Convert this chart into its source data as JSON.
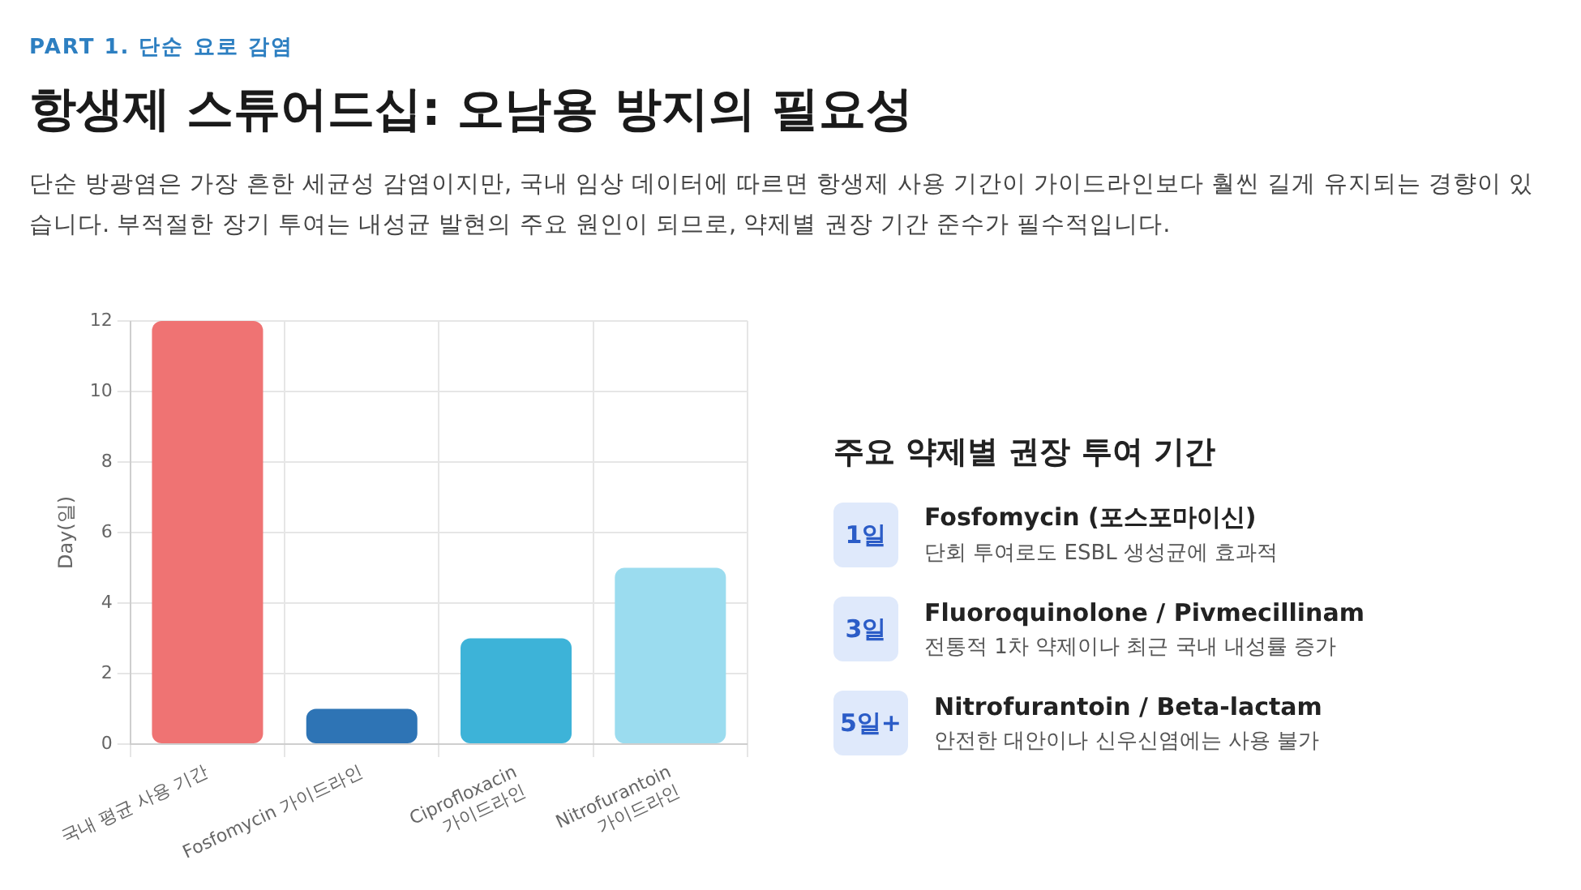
{
  "chart_data": [
    {
      "type": "bar",
      "title": "항생제 스튜어드십: 오남용 방지의 필요성",
      "subtitle": "단순 방광염은 가장 흔한 세균성 감염이지만, 국내 임상 데이터에 따르면 항생제 사용 기간이 가이드라인보다 훨씬 길게 유지되는 경향이 있습니다. 부적절한 장기 투여는 내성균 발현의 주요 원인이 되므로, 약제별 권장 기간 준수가 필수적입니다.",
      "annotations": [
        "PART 1. 단순 요로 감염"
      ],
      "ylabel": "Day(일)",
      "categories": [
        "국내 평균 사용 기간",
        "Fosfomycin 가이드라인",
        "Ciprofloxacin\n가이드라인",
        "Nitrofurantoin\n가이드라인"
      ],
      "values": [
        12,
        1,
        3,
        5
      ],
      "colors": [
        "#ef7373",
        "#2e74b5",
        "#3db3d8",
        "#9bdcef"
      ],
      "ylim": [
        0,
        12
      ],
      "yticks": [
        0,
        2,
        4,
        6,
        8,
        10,
        12
      ],
      "grid": true,
      "legend": false
    },
    {
      "type": "other",
      "title": "주요 약제별 권장 투여 기간",
      "annotations": [
        "1일",
        "Fosfomycin (포스포마이신)",
        "단회 투여로도 ESBL 생성균에 효과적",
        "3일",
        "Fluoroquinolone / Pivmecillinam",
        "전통적 1차 약제이나 최근 국내 내성률 증가",
        "5일+",
        "Nitrofurantoin / Beta-lactam",
        "안전한 대안이나 신우신염에는 사용 불가"
      ]
    }
  ]
}
